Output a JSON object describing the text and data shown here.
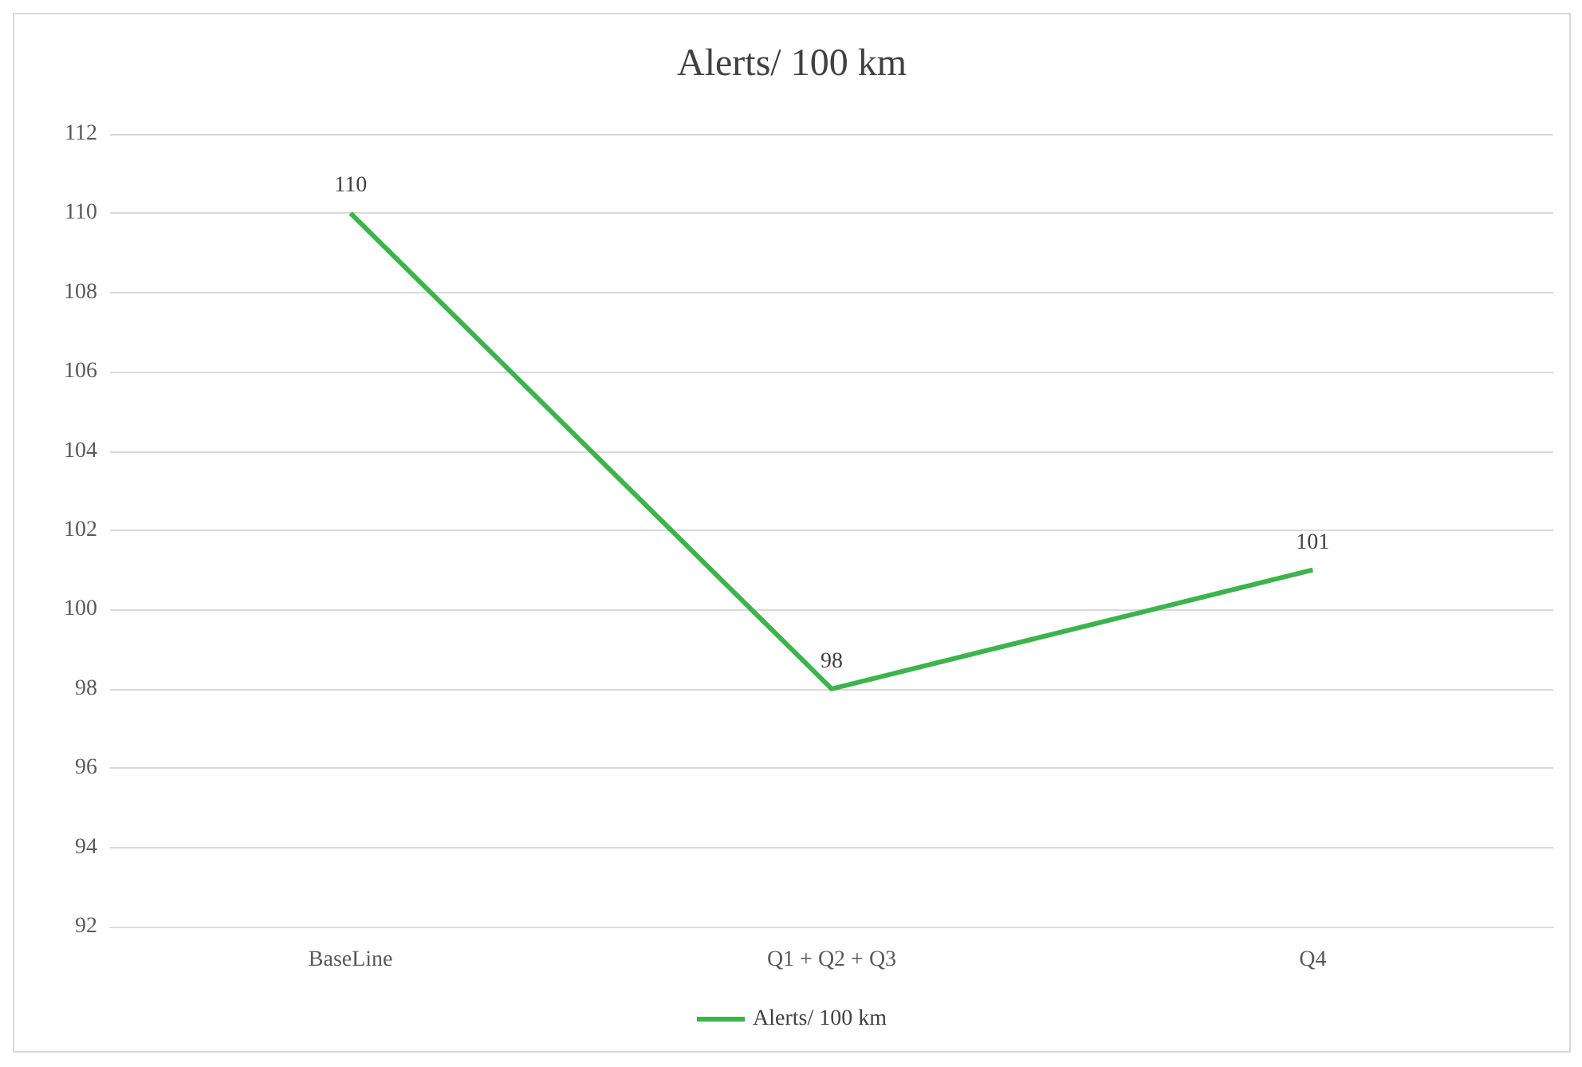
{
  "chart_data": {
    "type": "line",
    "title": "Alerts/ 100 km",
    "categories": [
      "BaseLine",
      "Q1 + Q2 + Q3",
      "Q4"
    ],
    "series": [
      {
        "name": "Alerts/ 100 km",
        "color": "#3cb44b",
        "values": [
          110,
          98,
          101
        ]
      }
    ],
    "ylim": [
      92,
      112
    ],
    "yticks": [
      92,
      94,
      96,
      98,
      100,
      102,
      104,
      106,
      108,
      110,
      112
    ],
    "grid": "y",
    "legend": "bottom",
    "data_labels": true
  }
}
